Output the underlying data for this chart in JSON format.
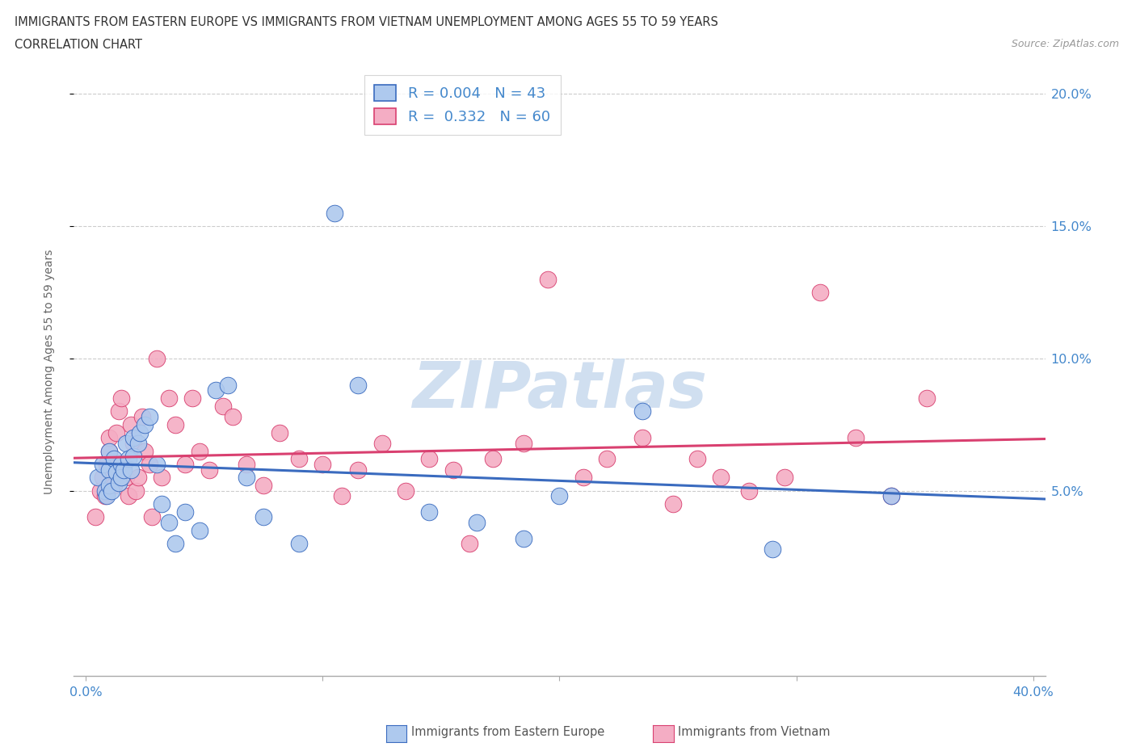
{
  "title_line1": "IMMIGRANTS FROM EASTERN EUROPE VS IMMIGRANTS FROM VIETNAM UNEMPLOYMENT AMONG AGES 55 TO 59 YEARS",
  "title_line2": "CORRELATION CHART",
  "source": "Source: ZipAtlas.com",
  "ylabel": "Unemployment Among Ages 55 to 59 years",
  "legend_labels": [
    "Immigrants from Eastern Europe",
    "Immigrants from Vietnam"
  ],
  "R_blue": 0.004,
  "N_blue": 43,
  "R_pink": 0.332,
  "N_pink": 60,
  "blue_color": "#aec9ee",
  "pink_color": "#f4adc4",
  "blue_line_color": "#3a6bbf",
  "pink_line_color": "#d94070",
  "watermark": "ZIPatlas",
  "watermark_color": "#d0dff0",
  "xlim": [
    -0.005,
    0.405
  ],
  "ylim": [
    -0.02,
    0.21
  ],
  "ytick_vals": [
    0.05,
    0.1,
    0.15,
    0.2
  ],
  "ytick_labels": [
    "5.0%",
    "10.0%",
    "15.0%",
    "20.0%"
  ],
  "xtick_vals": [
    0.0,
    0.1,
    0.2,
    0.3,
    0.4
  ],
  "xtick_labels": [
    "0.0%",
    "",
    "",
    "",
    "40.0%"
  ],
  "blue_x": [
    0.005,
    0.007,
    0.008,
    0.009,
    0.01,
    0.01,
    0.01,
    0.011,
    0.012,
    0.013,
    0.014,
    0.015,
    0.015,
    0.016,
    0.017,
    0.018,
    0.019,
    0.02,
    0.02,
    0.022,
    0.023,
    0.025,
    0.027,
    0.03,
    0.032,
    0.035,
    0.038,
    0.042,
    0.048,
    0.055,
    0.06,
    0.068,
    0.075,
    0.09,
    0.105,
    0.115,
    0.145,
    0.165,
    0.185,
    0.2,
    0.235,
    0.29,
    0.34
  ],
  "blue_y": [
    0.055,
    0.06,
    0.05,
    0.048,
    0.065,
    0.058,
    0.052,
    0.05,
    0.062,
    0.057,
    0.053,
    0.06,
    0.055,
    0.058,
    0.068,
    0.062,
    0.058,
    0.07,
    0.063,
    0.068,
    0.072,
    0.075,
    0.078,
    0.06,
    0.045,
    0.038,
    0.03,
    0.042,
    0.035,
    0.088,
    0.09,
    0.055,
    0.04,
    0.03,
    0.155,
    0.09,
    0.042,
    0.038,
    0.032,
    0.048,
    0.08,
    0.028,
    0.048
  ],
  "pink_x": [
    0.004,
    0.006,
    0.007,
    0.008,
    0.009,
    0.01,
    0.01,
    0.011,
    0.012,
    0.013,
    0.014,
    0.015,
    0.016,
    0.017,
    0.018,
    0.019,
    0.02,
    0.021,
    0.022,
    0.024,
    0.025,
    0.027,
    0.028,
    0.03,
    0.032,
    0.035,
    0.038,
    0.042,
    0.045,
    0.048,
    0.052,
    0.058,
    0.062,
    0.068,
    0.075,
    0.082,
    0.09,
    0.1,
    0.108,
    0.115,
    0.125,
    0.135,
    0.145,
    0.155,
    0.162,
    0.172,
    0.185,
    0.195,
    0.21,
    0.22,
    0.235,
    0.248,
    0.258,
    0.268,
    0.28,
    0.295,
    0.31,
    0.325,
    0.34,
    0.355
  ],
  "pink_y": [
    0.04,
    0.05,
    0.055,
    0.048,
    0.06,
    0.065,
    0.07,
    0.058,
    0.052,
    0.072,
    0.08,
    0.085,
    0.06,
    0.055,
    0.048,
    0.075,
    0.068,
    0.05,
    0.055,
    0.078,
    0.065,
    0.06,
    0.04,
    0.1,
    0.055,
    0.085,
    0.075,
    0.06,
    0.085,
    0.065,
    0.058,
    0.082,
    0.078,
    0.06,
    0.052,
    0.072,
    0.062,
    0.06,
    0.048,
    0.058,
    0.068,
    0.05,
    0.062,
    0.058,
    0.03,
    0.062,
    0.068,
    0.13,
    0.055,
    0.062,
    0.07,
    0.045,
    0.062,
    0.055,
    0.05,
    0.055,
    0.125,
    0.07,
    0.048,
    0.085
  ]
}
